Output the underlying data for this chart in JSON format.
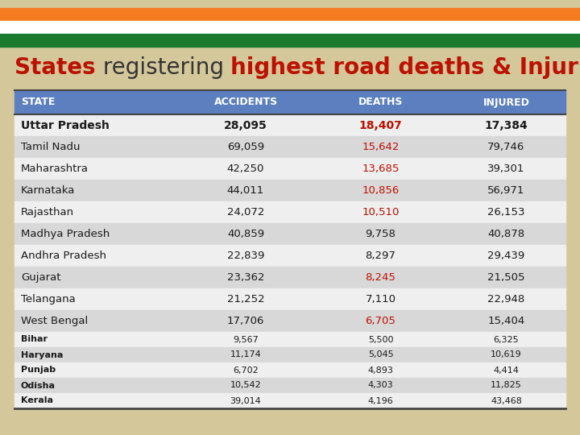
{
  "header": [
    "STATE",
    "ACCIDENTS",
    "DEATHS",
    "INJURED"
  ],
  "rows": [
    {
      "state": "Uttar Pradesh",
      "accidents": "28,095",
      "deaths": "18,407",
      "injured": "17,384",
      "bold": true,
      "deaths_red": true
    },
    {
      "state": "Tamil Nadu",
      "accidents": "69,059",
      "deaths": "15,642",
      "injured": "79,746",
      "bold": false,
      "deaths_red": true
    },
    {
      "state": "Maharashtra",
      "accidents": "42,250",
      "deaths": "13,685",
      "injured": "39,301",
      "bold": false,
      "deaths_red": true
    },
    {
      "state": "Karnataka",
      "accidents": "44,011",
      "deaths": "10,856",
      "injured": "56,971",
      "bold": false,
      "deaths_red": true
    },
    {
      "state": "Rajasthan",
      "accidents": "24,072",
      "deaths": "10,510",
      "injured": "26,153",
      "bold": false,
      "deaths_red": true
    },
    {
      "state": "Madhya Pradesh",
      "accidents": "40,859",
      "deaths": "9,758",
      "injured": "40,878",
      "bold": false,
      "deaths_red": false
    },
    {
      "state": "Andhra Pradesh",
      "accidents": "22,839",
      "deaths": "8,297",
      "injured": "29,439",
      "bold": false,
      "deaths_red": false
    },
    {
      "state": "Gujarat",
      "accidents": "23,362",
      "deaths": "8,245",
      "injured": "21,505",
      "bold": false,
      "deaths_red": true
    },
    {
      "state": "Telangana",
      "accidents": "21,252",
      "deaths": "7,110",
      "injured": "22,948",
      "bold": false,
      "deaths_red": false
    },
    {
      "state": "West Bengal",
      "accidents": "17,706",
      "deaths": "6,705",
      "injured": "15,404",
      "bold": false,
      "deaths_red": true
    }
  ],
  "small_rows": [
    {
      "state": "Bihar",
      "accidents": "9,567",
      "deaths": "5,500",
      "injured": "6,325"
    },
    {
      "state": "Haryana",
      "accidents": "11,174",
      "deaths": "5,045",
      "injured": "10,619"
    },
    {
      "state": "Punjab",
      "accidents": "6,702",
      "deaths": "4,893",
      "injured": "4,414"
    },
    {
      "state": "Odisha",
      "accidents": "10,542",
      "deaths": "4,303",
      "injured": "11,825"
    },
    {
      "state": "Kerala",
      "accidents": "39,014",
      "deaths": "4,196",
      "injured": "43,468"
    }
  ],
  "bg_color": "#d4c89a",
  "header_bg": "#5b7fbf",
  "header_text": "#ffffff",
  "row_even_bg": "#efefef",
  "row_odd_bg": "#d8d8d8",
  "red_color": "#bb1100",
  "dark_text": "#1a1a1a",
  "stripe_orange": "#f47b20",
  "stripe_green": "#1a7a2e",
  "stripe_white": "#ffffff",
  "title_states_color": "#bb1100",
  "title_reg_color": "#333333",
  "title_rest_color": "#bb1100"
}
